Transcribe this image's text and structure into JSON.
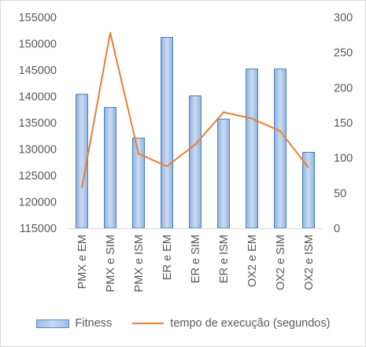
{
  "chart_data": {
    "type": "bar",
    "title": "",
    "categories": [
      "PMX e EM",
      "PMX e SIM",
      "PMX e ISM",
      "ER e EM",
      "ER e SIM",
      "ER e ISM",
      "OX2 e EM",
      "OX2 e SIM",
      "OX2 e ISM"
    ],
    "series": [
      {
        "name": "Fitness",
        "type": "bar",
        "axis": "left",
        "color": "#9dbde6",
        "values": [
          140400,
          137900,
          132100,
          151200,
          140100,
          135700,
          145200,
          145200,
          129400
        ]
      },
      {
        "name": "tempo de execução (segundos)",
        "type": "line",
        "axis": "right",
        "color": "#ed7d31",
        "values": [
          57,
          278,
          106,
          88,
          119,
          165,
          156,
          138,
          86
        ]
      }
    ],
    "y_left": {
      "min": 115000,
      "max": 155000,
      "ticks": [
        115000,
        120000,
        125000,
        130000,
        135000,
        140000,
        145000,
        150000,
        155000
      ]
    },
    "y_right": {
      "min": 0,
      "max": 300,
      "ticks": [
        0,
        50,
        100,
        150,
        200,
        250,
        300
      ]
    },
    "grid": false,
    "legend_position": "bottom"
  }
}
